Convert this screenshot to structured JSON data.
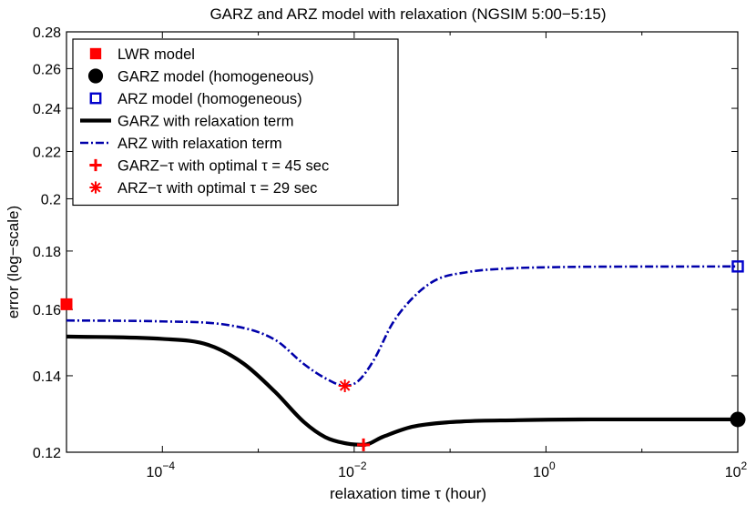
{
  "chart_data": {
    "type": "line",
    "title": "GARZ and ARZ model with relaxation (NGSIM 5:00−5:15)",
    "xlabel": "relaxation time τ (hour)",
    "ylabel": "error (log−scale)",
    "xscale": "log",
    "yscale": "log",
    "xlim": [
      1e-05,
      100
    ],
    "ylim": [
      0.12,
      0.28
    ],
    "x_tick_values": [
      0.0001,
      0.01,
      1,
      100
    ],
    "x_tick_labels": [
      {
        "base": "10",
        "exp": "−4"
      },
      {
        "base": "10",
        "exp": "−2"
      },
      {
        "base": "10",
        "exp": "0"
      },
      {
        "base": "10",
        "exp": "2"
      }
    ],
    "y_ticks": [
      0.12,
      0.14,
      0.16,
      0.18,
      0.2,
      0.22,
      0.24,
      0.26,
      0.28
    ],
    "y_tick_labels": [
      "0.12",
      "0.14",
      "0.16",
      "0.18",
      "0.2",
      "0.22",
      "0.24",
      "0.26",
      "0.28"
    ],
    "series": [
      {
        "name": "LWR model",
        "kind": "marker",
        "marker": "filled-square",
        "color": "#ff0000",
        "points": [
          [
            1e-05,
            0.1617
          ]
        ]
      },
      {
        "name": "GARZ model (homogeneous)",
        "kind": "marker",
        "marker": "filled-circle",
        "color": "#000000",
        "points": [
          [
            100,
            0.1282
          ]
        ]
      },
      {
        "name": "ARZ model (homogeneous)",
        "kind": "marker",
        "marker": "open-square",
        "color": "#0000cc",
        "points": [
          [
            100,
            0.1745
          ]
        ]
      },
      {
        "name": "GARZ with relaxation term",
        "kind": "line",
        "style": "solid",
        "color": "#000000",
        "x": [
          1e-05,
          0.0001,
          0.0003,
          0.0007,
          0.0015,
          0.003,
          0.005,
          0.008,
          0.0125,
          0.02,
          0.04,
          0.1,
          0.5,
          3,
          100
        ],
        "y": [
          0.1515,
          0.1508,
          0.149,
          0.1435,
          0.1355,
          0.1275,
          0.1237,
          0.1222,
          0.1218,
          0.1238,
          0.1263,
          0.1275,
          0.128,
          0.1282,
          0.1282
        ]
      },
      {
        "name": "ARZ with relaxation term",
        "kind": "line",
        "style": "dash-dot",
        "color": "#0000aa",
        "x": [
          1e-05,
          0.0001,
          0.0005,
          0.0015,
          0.003,
          0.005,
          0.008,
          0.011,
          0.016,
          0.025,
          0.04,
          0.07,
          0.15,
          0.4,
          1,
          3,
          100
        ],
        "y": [
          0.1565,
          0.1562,
          0.155,
          0.1505,
          0.1433,
          0.1393,
          0.1372,
          0.1385,
          0.1445,
          0.1555,
          0.1635,
          0.1697,
          0.1725,
          0.1738,
          0.1742,
          0.1744,
          0.1745
        ]
      },
      {
        "name": "GARZ−τ with optimal τ = 45 sec",
        "kind": "marker",
        "marker": "plus",
        "color": "#ff0000",
        "points": [
          [
            0.0125,
            0.1218
          ]
        ]
      },
      {
        "name": "ARZ−τ with optimal τ = 29 sec",
        "kind": "marker",
        "marker": "asterisk",
        "color": "#ff0000",
        "points": [
          [
            0.008,
            0.1372
          ]
        ]
      }
    ],
    "legend": {
      "placement": "top-left",
      "entries": [
        {
          "label": "LWR model",
          "symbol": "filled-square",
          "color": "#ff0000"
        },
        {
          "label": "GARZ model (homogeneous)",
          "symbol": "filled-circle",
          "color": "#000000"
        },
        {
          "label": "ARZ model (homogeneous)",
          "symbol": "open-square",
          "color": "#0000cc"
        },
        {
          "label": "GARZ with relaxation term",
          "symbol": "solid-line",
          "color": "#000000"
        },
        {
          "label": "ARZ with relaxation term",
          "symbol": "dash-dot-line",
          "color": "#0000aa"
        },
        {
          "label": "GARZ−τ with optimal τ = 45 sec",
          "symbol": "plus",
          "color": "#ff0000"
        },
        {
          "label": "ARZ−τ with optimal τ = 29 sec",
          "symbol": "asterisk",
          "color": "#ff0000"
        }
      ]
    }
  }
}
